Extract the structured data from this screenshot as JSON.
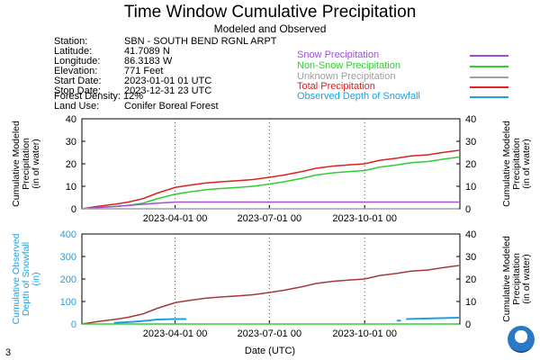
{
  "header": {
    "title": "Time Window Cumulative Precipitation",
    "subtitle": "Modeled and Observed"
  },
  "station_info": [
    {
      "key": "Station:",
      "value": "SBN - SOUTH BEND RGNL ARPT"
    },
    {
      "key": "Latitude:",
      "value": "41.7089 N"
    },
    {
      "key": "Longitude:",
      "value": "86.3183 W"
    },
    {
      "key": "Elevation:",
      "value": "771 Feet"
    },
    {
      "key": "Start Date:",
      "value": "2023-01-01 01 UTC"
    },
    {
      "key": "Stop Date:",
      "value": "2023-12-31 23 UTC"
    },
    {
      "key": "Forest Density:",
      "value": "12%"
    },
    {
      "key": "Land Use:",
      "value": "Conifer Boreal Forest"
    }
  ],
  "legend": [
    {
      "label": "Snow Precipitation",
      "color": "#9d52d6"
    },
    {
      "label": "Non-Snow Precipitation",
      "color": "#33cc33"
    },
    {
      "label": "Unknown Precipitation",
      "color": "#a0a0a0"
    },
    {
      "label": "Total Precipitation",
      "color": "#dd2222"
    },
    {
      "label": "Observed Depth of Snowfall",
      "color": "#1ea0e6"
    }
  ],
  "footer": {
    "page_number": "3",
    "xlabel": "Date (UTC)"
  },
  "chart_data": [
    {
      "type": "line",
      "ylabel_left": "Cumulative Modeled Precipitation (in of water)",
      "ylabel_right": "Cumulative Modeled Precipitation (in of water)",
      "ylim": [
        0,
        40
      ],
      "yticks": [
        0,
        10,
        20,
        30,
        40
      ],
      "xticks": [
        "2023-04-01 00",
        "2023-07-01 00",
        "2023-10-01 00"
      ],
      "grid": "vertical dotted at x ticks",
      "series": [
        {
          "name": "Total Precipitation",
          "color": "#dd2222",
          "x": [
            "2023-01-01",
            "2023-01-15",
            "2023-02-01",
            "2023-02-15",
            "2023-03-01",
            "2023-03-15",
            "2023-04-01",
            "2023-04-15",
            "2023-05-01",
            "2023-05-15",
            "2023-06-01",
            "2023-06-15",
            "2023-07-01",
            "2023-07-15",
            "2023-08-01",
            "2023-08-15",
            "2023-09-01",
            "2023-09-15",
            "2023-10-01",
            "2023-10-15",
            "2023-11-01",
            "2023-11-15",
            "2023-12-01",
            "2023-12-15",
            "2023-12-31"
          ],
          "values": [
            0,
            1,
            2,
            3,
            4.5,
            7,
            9.5,
            10.5,
            11.5,
            12,
            12.5,
            13,
            14,
            15,
            16.5,
            18,
            19,
            19.5,
            20,
            21.5,
            22.5,
            23.5,
            24,
            25,
            26
          ]
        },
        {
          "name": "Non-Snow Precipitation",
          "color": "#33cc33",
          "x": [
            "2023-01-01",
            "2023-01-15",
            "2023-02-01",
            "2023-02-15",
            "2023-03-01",
            "2023-03-15",
            "2023-04-01",
            "2023-04-15",
            "2023-05-01",
            "2023-05-15",
            "2023-06-01",
            "2023-06-15",
            "2023-07-01",
            "2023-07-15",
            "2023-08-01",
            "2023-08-15",
            "2023-09-01",
            "2023-09-15",
            "2023-10-01",
            "2023-10-15",
            "2023-11-01",
            "2023-11-15",
            "2023-12-01",
            "2023-12-15",
            "2023-12-31"
          ],
          "values": [
            0,
            0.5,
            1,
            1.5,
            2.5,
            4.5,
            6.5,
            7.5,
            8.5,
            9,
            9.5,
            10,
            11,
            12,
            13.5,
            15,
            16,
            16.5,
            17,
            18.5,
            19.5,
            20.5,
            21,
            22,
            23
          ]
        },
        {
          "name": "Snow Precipitation",
          "color": "#9d52d6",
          "x": [
            "2023-01-01",
            "2023-01-15",
            "2023-02-01",
            "2023-02-15",
            "2023-03-01",
            "2023-03-15",
            "2023-04-01",
            "2023-12-01",
            "2023-12-15",
            "2023-12-31"
          ],
          "values": [
            0,
            0.5,
            1,
            1.5,
            2,
            2.5,
            3,
            3,
            3,
            3
          ]
        },
        {
          "name": "Unknown Precipitation",
          "color": "#a0a0a0",
          "x": [
            "2023-01-01",
            "2023-12-31"
          ],
          "values": [
            0,
            0
          ]
        }
      ]
    },
    {
      "type": "line",
      "ylabel_left": "Cumulative Observed Depth of Snowfall (in)",
      "ylabel_right": "Cumulative Modeled Precipitation (in of water)",
      "ylim_left": [
        0,
        400
      ],
      "yticks_left": [
        0,
        100,
        200,
        300,
        400
      ],
      "ylim_right": [
        0,
        40
      ],
      "yticks_right": [
        0,
        10,
        20,
        30,
        40
      ],
      "xticks": [
        "2023-04-01 00",
        "2023-07-01 00",
        "2023-10-01 00"
      ],
      "grid": "vertical dotted at x ticks",
      "series": [
        {
          "name": "Total Precipitation",
          "color": "#a53a3a",
          "axis": "right",
          "x": [
            "2023-01-01",
            "2023-01-15",
            "2023-02-01",
            "2023-02-15",
            "2023-03-01",
            "2023-03-15",
            "2023-04-01",
            "2023-04-15",
            "2023-05-01",
            "2023-05-15",
            "2023-06-01",
            "2023-06-15",
            "2023-07-01",
            "2023-07-15",
            "2023-08-01",
            "2023-08-15",
            "2023-09-01",
            "2023-09-15",
            "2023-10-01",
            "2023-10-15",
            "2023-11-01",
            "2023-11-15",
            "2023-12-01",
            "2023-12-15",
            "2023-12-31"
          ],
          "values": [
            0,
            1,
            2,
            3,
            4.5,
            7,
            9.5,
            10.5,
            11.5,
            12,
            12.5,
            13,
            14,
            15,
            16.5,
            18,
            19,
            19.5,
            20,
            21.5,
            22.5,
            23.5,
            24,
            25,
            26
          ]
        },
        {
          "name": "Observed Depth of Snowfall",
          "color": "#1ea0e6",
          "axis": "left",
          "segments": [
            {
              "x": [
                "2023-02-01",
                "2023-02-20",
                "2023-03-05",
                "2023-03-15",
                "2023-04-01",
                "2023-04-12"
              ],
              "values": [
                5,
                10,
                15,
                20,
                22,
                22
              ]
            },
            {
              "x": [
                "2023-11-01",
                "2023-11-05"
              ],
              "values": [
                15,
                15
              ]
            },
            {
              "x": [
                "2023-11-10",
                "2023-12-05",
                "2023-12-31"
              ],
              "values": [
                22,
                25,
                28
              ]
            }
          ]
        },
        {
          "name": "Non-Snow Precipitation",
          "color": "#33cc33",
          "axis": "left",
          "x": [
            "2023-01-01",
            "2023-12-31"
          ],
          "values": [
            0,
            0
          ]
        }
      ]
    }
  ]
}
